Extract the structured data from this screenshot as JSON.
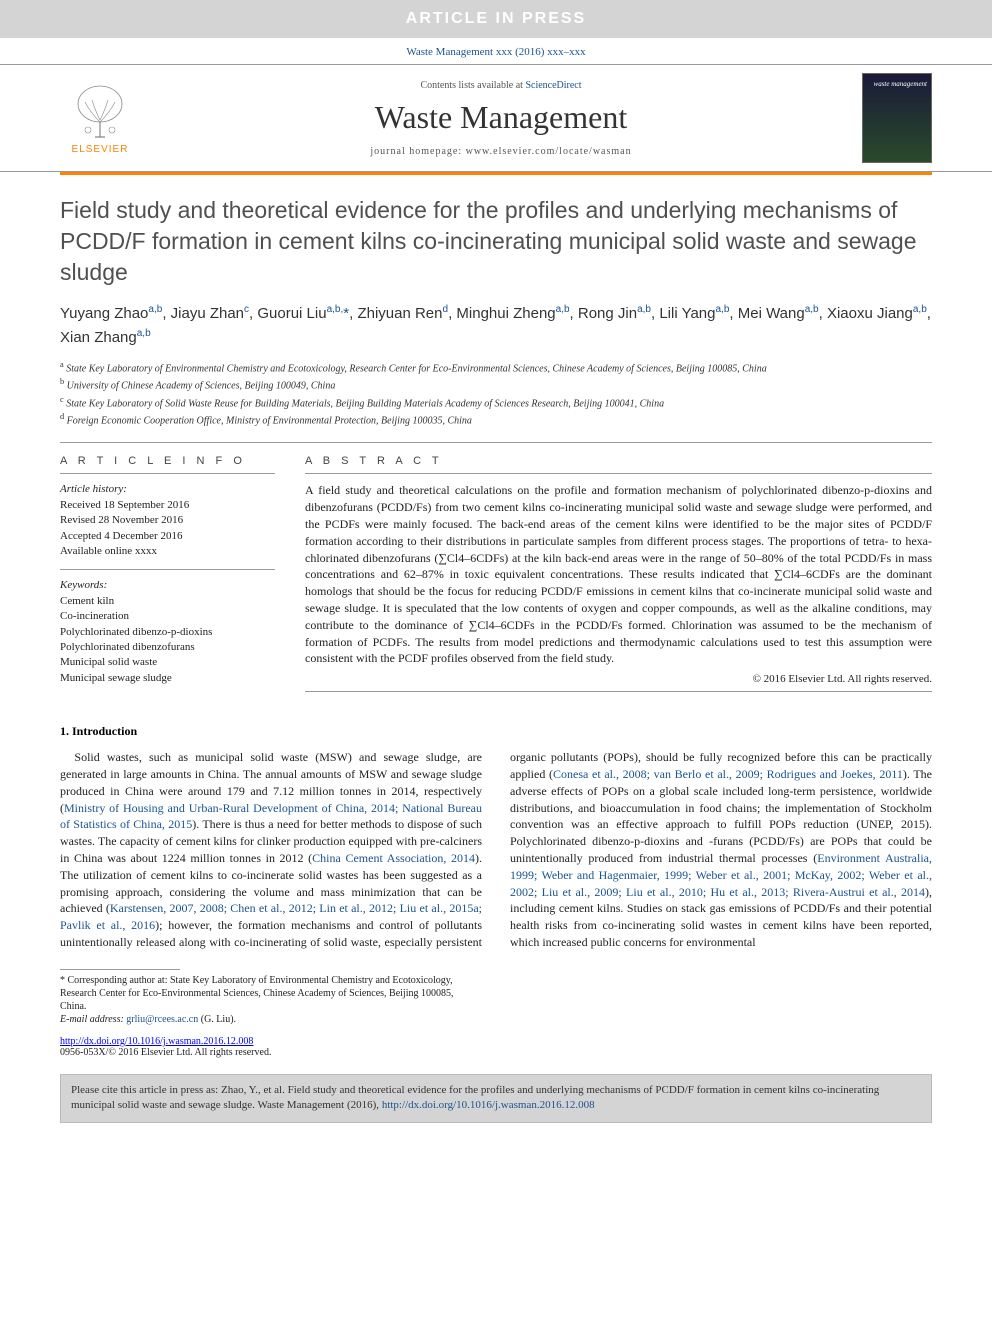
{
  "banner": {
    "text": "ARTICLE IN PRESS"
  },
  "journal_ref": "Waste Management xxx (2016) xxx–xxx",
  "masthead": {
    "elsevier": "ELSEVIER",
    "contents_prefix": "Contents lists available at ",
    "contents_link": "ScienceDirect",
    "journal_name": "Waste Management",
    "homepage_label": "journal homepage: ",
    "homepage_url": "www.elsevier.com/locate/wasman",
    "cover_label": "waste management"
  },
  "title": "Field study and theoretical evidence for the profiles and underlying mechanisms of PCDD/F formation in cement kilns co-incinerating municipal solid waste and sewage sludge",
  "authors_html": "Yuyang Zhao<sup>a,b</sup>, Jiayu Zhan<sup>c</sup>, Guorui Liu<sup>a,b,</sup><span class='ast'>*</span>, Zhiyuan Ren<sup>d</sup>, Minghui Zheng<sup>a,b</sup>, Rong Jin<sup>a,b</sup>, Lili Yang<sup>a,b</sup>, Mei Wang<sup>a,b</sup>, Xiaoxu Jiang<sup>a,b</sup>, Xian Zhang<sup>a,b</sup>",
  "affiliations": [
    {
      "sup": "a",
      "text": "State Key Laboratory of Environmental Chemistry and Ecotoxicology, Research Center for Eco-Environmental Sciences, Chinese Academy of Sciences, Beijing 100085, China"
    },
    {
      "sup": "b",
      "text": "University of Chinese Academy of Sciences, Beijing 100049, China"
    },
    {
      "sup": "c",
      "text": "State Key Laboratory of Solid Waste Reuse for Building Materials, Beijing Building Materials Academy of Sciences Research, Beijing 100041, China"
    },
    {
      "sup": "d",
      "text": "Foreign Economic Cooperation Office, Ministry of Environmental Protection, Beijing 100035, China"
    }
  ],
  "info_heading": "A R T I C L E   I N F O",
  "abstract_heading": "A B S T R A C T",
  "history": {
    "title": "Article history:",
    "received": "Received 18 September 2016",
    "revised": "Revised 28 November 2016",
    "accepted": "Accepted 4 December 2016",
    "online": "Available online xxxx"
  },
  "keywords": {
    "title": "Keywords:",
    "items": [
      "Cement kiln",
      "Co-incineration",
      "Polychlorinated dibenzo-p-dioxins",
      "Polychlorinated dibenzofurans",
      "Municipal solid waste",
      "Municipal sewage sludge"
    ]
  },
  "abstract": "A field study and theoretical calculations on the profile and formation mechanism of polychlorinated dibenzo-p-dioxins and dibenzofurans (PCDD/Fs) from two cement kilns co-incinerating municipal solid waste and sewage sludge were performed, and the PCDFs were mainly focused. The back-end areas of the cement kilns were identified to be the major sites of PCDD/F formation according to their distributions in particulate samples from different process stages. The proportions of tetra- to hexa-chlorinated dibenzofurans (∑Cl4–6CDFs) at the kiln back-end areas were in the range of 50–80% of the total PCDD/Fs in mass concentrations and 62–87% in toxic equivalent concentrations. These results indicated that ∑Cl4–6CDFs are the dominant homologs that should be the focus for reducing PCDD/F emissions in cement kilns that co-incinerate municipal solid waste and sewage sludge. It is speculated that the low contents of oxygen and copper compounds, as well as the alkaline conditions, may contribute to the dominance of ∑Cl4–6CDFs in the PCDD/Fs formed. Chlorination was assumed to be the mechanism of formation of PCDFs. The results from model predictions and thermodynamic calculations used to test this assumption were consistent with the PCDF profiles observed from the field study.",
  "copyright": "© 2016 Elsevier Ltd. All rights reserved.",
  "section1": {
    "number": "1.",
    "title": "Introduction"
  },
  "body_col1_para": "Solid wastes, such as municipal solid waste (MSW) and sewage sludge, are generated in large amounts in China. The annual amounts of MSW and sewage sludge produced in China were around 179 and 7.12 million tonnes in 2014, respectively (",
  "body_col1_cite1": "Ministry of Housing and Urban-Rural Development of China, 2014; National Bureau of Statistics of China, 2015",
  "body_col1_para2": "). There is thus a need for better methods to dispose of such wastes. The capacity of cement kilns for clinker production equipped with pre-calciners in China was about 1224 million tonnes in 2012 (",
  "body_col1_cite2": "China Cement Association, 2014",
  "body_col1_para3": "). The utilization of cement kilns to co-incinerate solid wastes has been suggested as a promising approach, considering the volume and mass minimization that",
  "body_col2_para1": "can be achieved (",
  "body_col2_cite1": "Karstensen, 2007, 2008; Chen et al., 2012; Lin et al., 2012; Liu et al., 2015a; Pavlik et al., 2016",
  "body_col2_para2": "); however, the formation mechanisms and control of pollutants unintentionally released along with co-incinerating of solid waste, especially persistent organic pollutants (POPs), should be fully recognized before this can be practically applied (",
  "body_col2_cite2": "Conesa et al., 2008; van Berlo et al., 2009; Rodrigues and Joekes, 2011",
  "body_col2_para3": "). The adverse effects of POPs on a global scale included long-term persistence, worldwide distributions, and bioaccumulation in food chains; the implementation of Stockholm convention was an effective approach to fulfill POPs reduction (UNEP, 2015). Polychlorinated dibenzo-p-dioxins and -furans (PCDD/Fs) are POPs that could be unintentionally produced from industrial thermal processes (",
  "body_col2_cite3": "Environment Australia, 1999; Weber and Hagenmaier, 1999; Weber et al., 2001; McKay, 2002; Weber et al., 2002; Liu et al., 2009; Liu et al., 2010; Hu et al., 2013; Rivera-Austrui et al., 2014",
  "body_col2_para4": "), including cement kilns. Studies on stack gas emissions of PCDD/Fs and their potential health risks from co-incinerating solid wastes in cement kilns have been reported, which increased public concerns for environmental",
  "corresponding": {
    "marker": "*",
    "text": "Corresponding author at: State Key Laboratory of Environmental Chemistry and Ecotoxicology, Research Center for Eco-Environmental Sciences, Chinese Academy of Sciences, Beijing 100085, China.",
    "email_label": "E-mail address: ",
    "email": "grliu@rcees.ac.cn",
    "email_suffix": " (G. Liu)."
  },
  "doi": {
    "url": "http://dx.doi.org/10.1016/j.wasman.2016.12.008",
    "issn_line": "0956-053X/© 2016 Elsevier Ltd. All rights reserved."
  },
  "cite_box": {
    "prefix": "Please cite this article in press as: Zhao, Y., et al. Field study and theoretical evidence for the profiles and underlying mechanisms of PCDD/F formation in cement kilns co-incinerating municipal solid waste and sewage sludge. Waste Management (2016), ",
    "link": "http://dx.doi.org/10.1016/j.wasman.2016.12.008"
  },
  "colors": {
    "banner_bg": "#d4d4d4",
    "link": "#1a5490",
    "accent": "#ff8200"
  }
}
